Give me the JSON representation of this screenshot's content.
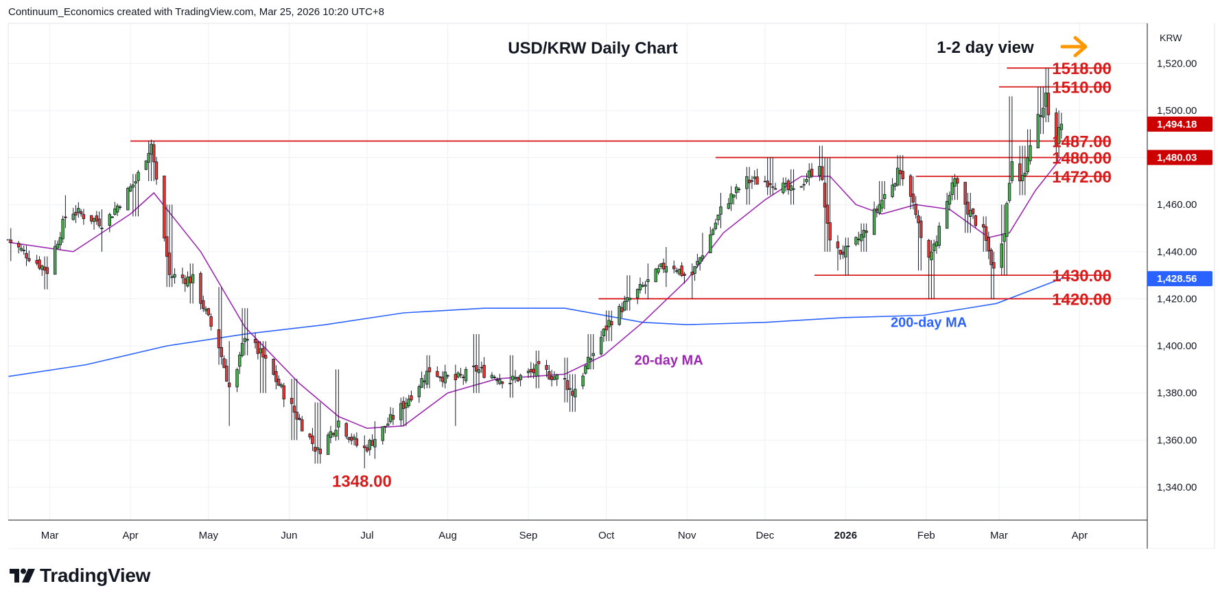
{
  "header": {
    "attribution": "Continuum_Economics created with TradingView.com, Mar 25, 2026 10:20 UTC+8"
  },
  "footer": {
    "brand": "TradingView"
  },
  "chart_data": {
    "type": "candlestick",
    "title": "USD/KRW Daily Chart",
    "subtitle": "1-2 day view",
    "symbol_label": "KRW",
    "x_tick_labels": [
      "Mar",
      "Apr",
      "May",
      "Jun",
      "Jul",
      "Aug",
      "Sep",
      "Oct",
      "Nov",
      "Dec",
      "2026",
      "Feb",
      "Mar",
      "Apr"
    ],
    "x_tick_dates": [
      "2025-03-01",
      "2025-04-01",
      "2025-05-01",
      "2025-06-01",
      "2025-07-01",
      "2025-08-01",
      "2025-09-01",
      "2025-10-01",
      "2025-11-01",
      "2025-12-01",
      "2026-01-01",
      "2026-02-01",
      "2026-03-01",
      "2026-04-01"
    ],
    "x_range": [
      "2025-02-13",
      "2026-04-27"
    ],
    "y_ticks": [
      1340,
      1360,
      1380,
      1400,
      1420,
      1440,
      1460,
      1480,
      1500,
      1520
    ],
    "y_tick_labels": [
      "1,340.00",
      "1,360.00",
      "1,380.00",
      "1,400.00",
      "1,420.00",
      "1,440.00",
      "1,460.00",
      "1,480.00",
      "1,500.00",
      "1,520.00"
    ],
    "ylim": [
      1326,
      1537
    ],
    "grid": true,
    "price_tags": [
      {
        "label": "1,494.18",
        "value": 1494.18,
        "color": "#cc0000"
      },
      {
        "label": "1,480.03",
        "value": 1480.03,
        "color": "#cc0000"
      },
      {
        "label": "1,428.56",
        "value": 1428.56,
        "color": "#2962ff"
      }
    ],
    "levels": [
      {
        "label": "1518.00",
        "value": 1518,
        "from": "2026-03-04"
      },
      {
        "label": "1510.00",
        "value": 1510,
        "from": "2026-03-01"
      },
      {
        "label": "1487.00",
        "value": 1487,
        "from": "2025-04-01"
      },
      {
        "label": "1480.00",
        "value": 1480,
        "from": "2025-11-12"
      },
      {
        "label": "1472.00",
        "value": 1472,
        "from": "2026-01-28"
      },
      {
        "label": "1430.00",
        "value": 1430,
        "from": "2025-12-20"
      },
      {
        "label": "1420.00",
        "value": 1420,
        "from": "2025-09-28"
      }
    ],
    "annotations": [
      {
        "text": "1348.00",
        "x": "2025-06-29",
        "value": 1348
      },
      {
        "text": "20-day MA",
        "x": "2025-10-25",
        "value": 1392
      },
      {
        "text": "200-day MA",
        "x": "2026-02-02",
        "value": 1408
      }
    ],
    "key_points": [
      [
        "2025-02-13",
        1445,
        1450,
        1436
      ],
      [
        "2025-02-28",
        1432,
        1438,
        1424
      ],
      [
        "2025-03-08",
        1458,
        1464,
        1450
      ],
      [
        "2025-03-22",
        1452,
        1458,
        1440
      ],
      [
        "2025-04-03",
        1470,
        1473,
        1455
      ],
      [
        "2025-04-09",
        1486,
        1487,
        1470
      ],
      [
        "2025-04-16",
        1430,
        1460,
        1425
      ],
      [
        "2025-04-25",
        1428,
        1435,
        1418
      ],
      [
        "2025-05-05",
        1400,
        1425,
        1392
      ],
      [
        "2025-05-10",
        1378,
        1402,
        1366
      ],
      [
        "2025-05-15",
        1405,
        1416,
        1396
      ],
      [
        "2025-05-22",
        1395,
        1402,
        1380
      ],
      [
        "2025-06-03",
        1372,
        1386,
        1360
      ],
      [
        "2025-06-12",
        1355,
        1376,
        1350
      ],
      [
        "2025-06-20",
        1368,
        1390,
        1360
      ],
      [
        "2025-06-29",
        1355,
        1362,
        1348
      ],
      [
        "2025-07-05",
        1362,
        1368,
        1352
      ],
      [
        "2025-07-15",
        1375,
        1378,
        1366
      ],
      [
        "2025-07-25",
        1390,
        1396,
        1382
      ],
      [
        "2025-08-03",
        1385,
        1392,
        1366
      ],
      [
        "2025-08-12",
        1390,
        1405,
        1380
      ],
      [
        "2025-08-25",
        1385,
        1396,
        1378
      ],
      [
        "2025-09-05",
        1390,
        1398,
        1382
      ],
      [
        "2025-09-15",
        1385,
        1395,
        1376
      ],
      [
        "2025-09-18",
        1380,
        1388,
        1372
      ],
      [
        "2025-09-25",
        1395,
        1405,
        1390
      ],
      [
        "2025-10-02",
        1410,
        1415,
        1402
      ],
      [
        "2025-10-10",
        1420,
        1430,
        1415
      ],
      [
        "2025-10-18",
        1428,
        1435,
        1420
      ],
      [
        "2025-10-25",
        1436,
        1442,
        1425
      ],
      [
        "2025-11-02",
        1428,
        1435,
        1420
      ],
      [
        "2025-11-08",
        1442,
        1448,
        1436
      ],
      [
        "2025-11-15",
        1460,
        1465,
        1450
      ],
      [
        "2025-11-24",
        1470,
        1476,
        1460
      ],
      [
        "2025-12-03",
        1470,
        1480,
        1464
      ],
      [
        "2025-12-12",
        1465,
        1475,
        1460
      ],
      [
        "2025-12-22",
        1478,
        1485,
        1470
      ],
      [
        "2025-12-25",
        1450,
        1480,
        1440
      ],
      [
        "2025-12-28",
        1440,
        1446,
        1432
      ],
      [
        "2026-01-02",
        1440,
        1446,
        1430
      ],
      [
        "2026-01-08",
        1448,
        1452,
        1440
      ],
      [
        "2026-01-15",
        1462,
        1470,
        1458
      ],
      [
        "2026-01-22",
        1475,
        1481,
        1468
      ],
      [
        "2026-01-26",
        1465,
        1472,
        1458
      ],
      [
        "2026-01-30",
        1445,
        1455,
        1432
      ],
      [
        "2026-02-03",
        1438,
        1445,
        1420
      ],
      [
        "2026-02-08",
        1458,
        1465,
        1450
      ],
      [
        "2026-02-12",
        1470,
        1472,
        1462
      ],
      [
        "2026-02-17",
        1458,
        1465,
        1448
      ],
      [
        "2026-02-23",
        1448,
        1455,
        1440
      ],
      [
        "2026-02-27",
        1432,
        1440,
        1420
      ],
      [
        "2026-03-03",
        1450,
        1460,
        1430
      ],
      [
        "2026-03-06",
        1480,
        1506,
        1470
      ],
      [
        "2026-03-10",
        1470,
        1485,
        1464
      ],
      [
        "2026-03-13",
        1484,
        1492,
        1478
      ],
      [
        "2026-03-17",
        1500,
        1510,
        1490
      ],
      [
        "2026-03-19",
        1505,
        1518,
        1495
      ],
      [
        "2026-03-23",
        1487,
        1500,
        1480
      ],
      [
        "2026-03-25",
        1494,
        1499,
        1488
      ]
    ],
    "ma20_points": [
      [
        "2025-02-13",
        1444
      ],
      [
        "2025-03-10",
        1440
      ],
      [
        "2025-04-01",
        1456
      ],
      [
        "2025-04-10",
        1465
      ],
      [
        "2025-04-28",
        1440
      ],
      [
        "2025-05-15",
        1408
      ],
      [
        "2025-06-05",
        1384
      ],
      [
        "2025-06-20",
        1370
      ],
      [
        "2025-07-01",
        1365
      ],
      [
        "2025-07-15",
        1366
      ],
      [
        "2025-08-01",
        1380
      ],
      [
        "2025-08-20",
        1386
      ],
      [
        "2025-09-15",
        1388
      ],
      [
        "2025-09-30",
        1396
      ],
      [
        "2025-10-15",
        1410
      ],
      [
        "2025-11-01",
        1428
      ],
      [
        "2025-11-15",
        1448
      ],
      [
        "2025-12-01",
        1462
      ],
      [
        "2025-12-15",
        1472
      ],
      [
        "2025-12-26",
        1472
      ],
      [
        "2026-01-05",
        1460
      ],
      [
        "2026-01-15",
        1456
      ],
      [
        "2026-01-28",
        1460
      ],
      [
        "2026-02-10",
        1458
      ],
      [
        "2026-02-25",
        1446
      ],
      [
        "2026-03-05",
        1448
      ],
      [
        "2026-03-15",
        1466
      ],
      [
        "2026-03-25",
        1480
      ]
    ],
    "ma200_points": [
      [
        "2025-02-13",
        1387
      ],
      [
        "2025-03-15",
        1392
      ],
      [
        "2025-04-15",
        1400
      ],
      [
        "2025-05-15",
        1405
      ],
      [
        "2025-06-15",
        1409
      ],
      [
        "2025-07-15",
        1414
      ],
      [
        "2025-08-15",
        1416
      ],
      [
        "2025-09-15",
        1416
      ],
      [
        "2025-10-15",
        1410
      ],
      [
        "2025-11-01",
        1409
      ],
      [
        "2025-12-01",
        1410
      ],
      [
        "2025-12-31",
        1412
      ],
      [
        "2026-01-31",
        1413
      ],
      [
        "2026-02-28",
        1418
      ],
      [
        "2026-03-25",
        1428.56
      ]
    ],
    "colors": {
      "up": "#4caf50",
      "down": "#e53935",
      "wick": "#131722",
      "level": "#d91a1a",
      "ma20": "#9c27b0",
      "ma200": "#2962ff",
      "arrow": "#ff9800"
    }
  }
}
